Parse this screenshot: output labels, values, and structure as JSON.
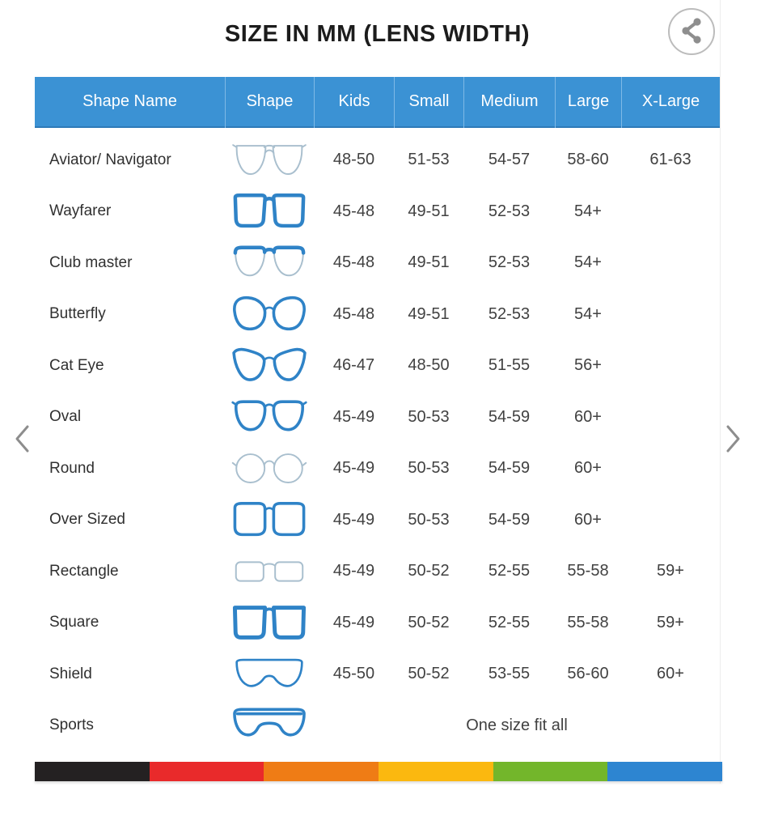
{
  "title": "SIZE IN MM (LENS WIDTH)",
  "share": {
    "icon": "share-icon"
  },
  "carousel": {
    "prev_icon": "chevron-left-icon",
    "next_icon": "chevron-right-icon"
  },
  "table": {
    "headers": [
      "Shape Name",
      "Shape",
      "Kids",
      "Small",
      "Medium",
      "Large",
      "X-Large"
    ],
    "rows": [
      {
        "name": "Aviator/ Navigator",
        "icon": "aviator-glasses-icon",
        "kids": "48-50",
        "small": "51-53",
        "medium": "54-57",
        "large": "58-60",
        "xlarge": "61-63"
      },
      {
        "name": "Wayfarer",
        "icon": "wayfarer-glasses-icon",
        "kids": "45-48",
        "small": "49-51",
        "medium": "52-53",
        "large": "54+",
        "xlarge": ""
      },
      {
        "name": "Club master",
        "icon": "clubmaster-glasses-icon",
        "kids": "45-48",
        "small": "49-51",
        "medium": "52-53",
        "large": "54+",
        "xlarge": ""
      },
      {
        "name": "Butterfly",
        "icon": "butterfly-glasses-icon",
        "kids": "45-48",
        "small": "49-51",
        "medium": "52-53",
        "large": "54+",
        "xlarge": ""
      },
      {
        "name": "Cat Eye",
        "icon": "cateye-glasses-icon",
        "kids": "46-47",
        "small": "48-50",
        "medium": "51-55",
        "large": "56+",
        "xlarge": ""
      },
      {
        "name": "Oval",
        "icon": "oval-glasses-icon",
        "kids": "45-49",
        "small": "50-53",
        "medium": "54-59",
        "large": "60+",
        "xlarge": ""
      },
      {
        "name": "Round",
        "icon": "round-glasses-icon",
        "kids": "45-49",
        "small": "50-53",
        "medium": "54-59",
        "large": "60+",
        "xlarge": ""
      },
      {
        "name": "Over Sized",
        "icon": "oversized-glasses-icon",
        "kids": "45-49",
        "small": "50-53",
        "medium": "54-59",
        "large": "60+",
        "xlarge": ""
      },
      {
        "name": "Rectangle",
        "icon": "rectangle-glasses-icon",
        "kids": "45-49",
        "small": "50-52",
        "medium": "52-55",
        "large": "55-58",
        "xlarge": "59+"
      },
      {
        "name": "Square",
        "icon": "square-glasses-icon",
        "kids": "45-49",
        "small": "50-52",
        "medium": "52-55",
        "large": "55-58",
        "xlarge": "59+"
      },
      {
        "name": "Shield",
        "icon": "shield-glasses-icon",
        "kids": "45-50",
        "small": "50-52",
        "medium": "53-55",
        "large": "56-60",
        "xlarge": "60+"
      },
      {
        "name": "Sports",
        "icon": "sports-glasses-icon",
        "span_text": "One size fit all"
      }
    ]
  },
  "stripe": {
    "colors": [
      "#242122",
      "#e92a2b",
      "#ef7c15",
      "#fbb80f",
      "#73b62b",
      "#2d85d1"
    ]
  },
  "colors": {
    "header-bg": "#3b92d4",
    "header-divider": "#7fb9e6",
    "header-border-bottom": "#2e7ab8",
    "frame-blue": "#2f83c7",
    "frame-thin": "#a9bfce",
    "title-text": "#1c1c1c",
    "row-name-text": "#303030",
    "row-num-text": "#414141",
    "chevron": "#8d8d8d",
    "share-gray": "#8e8e8e",
    "share-ring": "#bcbcbc"
  }
}
